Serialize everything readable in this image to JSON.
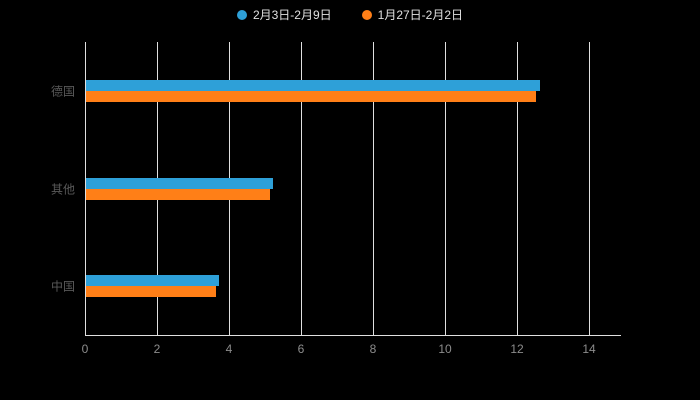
{
  "legend": {
    "items": [
      {
        "label": "2月3日-2月9日",
        "color": "#2ea0d8"
      },
      {
        "label": "1月27日-2月2日",
        "color": "#ff7f17"
      }
    ]
  },
  "chart_data": {
    "type": "bar",
    "orientation": "horizontal",
    "title": "",
    "categories": [
      "德国",
      "其他",
      "中国"
    ],
    "series": [
      {
        "name": "2月3日-2月9日",
        "color": "#2ea0d8",
        "values": [
          12.6,
          5.2,
          3.7
        ]
      },
      {
        "name": "1月27日-2月2日",
        "color": "#ff7f17",
        "values": [
          12.5,
          5.1,
          3.6
        ]
      }
    ],
    "xticks": [
      0,
      2,
      4,
      6,
      8,
      10,
      12,
      14
    ],
    "xlim": [
      0,
      14.9
    ],
    "grid": true,
    "legend_position": "top"
  },
  "colors": {
    "background": "#000000",
    "gridline": "#e0e0e0",
    "axis_line": "#e0e0e0",
    "tick_label": "#8c8c8c",
    "category_label": "#595959",
    "legend_text": "#e0e0e0"
  }
}
